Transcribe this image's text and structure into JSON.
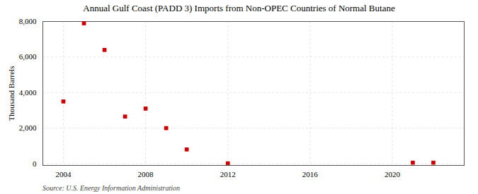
{
  "chart_data": {
    "type": "scatter",
    "title": "Annual Gulf Coast (PADD 3) Imports from Non-OPEC Countries of Normal Butane",
    "ylabel": "Thousand Barrels",
    "annotations": [
      "Source: U.S. Energy Information Administration"
    ],
    "x": [
      2004,
      2005,
      2006,
      2007,
      2008,
      2009,
      2010,
      2012,
      2021,
      2022
    ],
    "values": [
      3500,
      7900,
      6400,
      2650,
      3100,
      2000,
      800,
      15,
      55,
      55
    ],
    "color": "#cc0000",
    "marker": "square",
    "xlim": [
      2003.0,
      2023.5
    ],
    "ylim": [
      -100,
      8000
    ],
    "xticks": [
      2004,
      2008,
      2012,
      2016,
      2020
    ],
    "yticks": [
      0,
      {
        "value": 2000,
        "label": "2,000"
      },
      {
        "value": 4000,
        "label": "4,000"
      },
      {
        "value": 6000,
        "label": "6,000"
      },
      {
        "value": 8000,
        "label": "8,000"
      }
    ],
    "grid": true
  }
}
